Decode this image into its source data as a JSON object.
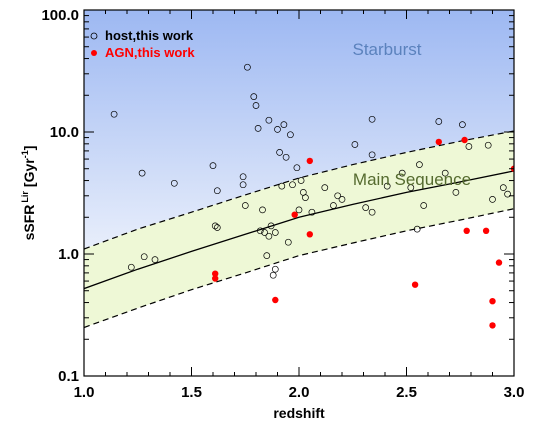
{
  "chart_data": {
    "type": "scatter",
    "xlabel": "redshift",
    "ylabel": "sSFR",
    "ylabel_superscript": "Lir",
    "ylabel_units": "[Gyr",
    "ylabel_units_exp": "-1",
    "ylabel_units_close": "]",
    "xlim": [
      1.0,
      3.0
    ],
    "ylim": [
      0.1,
      100.0
    ],
    "y_scale": "log",
    "grid": false,
    "legend_position": "top-left",
    "x_tick_labels": [
      "1.0",
      "1.5",
      "2.0",
      "2.5",
      "3.0"
    ],
    "x_ticks": [
      1.0,
      1.5,
      2.0,
      2.5,
      3.0
    ],
    "y_tick_labels": [
      "0.1",
      "1.0",
      "10.0",
      "100.0"
    ],
    "y_ticks": [
      0.1,
      1.0,
      10.0,
      100.0
    ],
    "annotations": {
      "starburst": "Starburst",
      "main_sequence": "Main Sequence"
    },
    "colors": {
      "starburst_top": "#9db8f2",
      "starburst_bottom": "#e8eefb",
      "main_sequence_fill": "#eef8d6",
      "starburst_text": "#5b82bd",
      "main_sequence_text": "#556b2f",
      "agn": "#ff0000",
      "legend_agn_text": "#ff0000",
      "host": "#000000"
    },
    "main_sequence": {
      "x": [
        1.0,
        1.25,
        1.5,
        1.75,
        2.0,
        2.25,
        2.5,
        2.75,
        3.0
      ],
      "center": [
        0.52,
        0.75,
        1.05,
        1.45,
        2.0,
        2.55,
        3.2,
        3.9,
        4.8
      ],
      "upper": [
        1.1,
        1.6,
        2.2,
        3.05,
        4.2,
        5.4,
        6.8,
        8.4,
        10.2
      ],
      "lower": [
        0.25,
        0.36,
        0.51,
        0.7,
        0.97,
        1.23,
        1.55,
        1.9,
        2.35
      ]
    },
    "series": [
      {
        "name": "host,this work",
        "marker": "open-circle",
        "points": [
          [
            1.14,
            14.0
          ],
          [
            1.22,
            0.78
          ],
          [
            1.27,
            4.6
          ],
          [
            1.28,
            0.95
          ],
          [
            1.33,
            0.9
          ],
          [
            1.42,
            3.8
          ],
          [
            1.6,
            5.3
          ],
          [
            1.61,
            1.7
          ],
          [
            1.62,
            1.65
          ],
          [
            1.62,
            3.3
          ],
          [
            1.74,
            4.3
          ],
          [
            1.74,
            3.7
          ],
          [
            1.75,
            2.5
          ],
          [
            1.76,
            34.0
          ],
          [
            1.79,
            19.5
          ],
          [
            1.8,
            16.5
          ],
          [
            1.81,
            10.7
          ],
          [
            1.82,
            1.55
          ],
          [
            1.83,
            2.3
          ],
          [
            1.84,
            1.5
          ],
          [
            1.85,
            0.97
          ],
          [
            1.86,
            12.5
          ],
          [
            1.86,
            1.4
          ],
          [
            1.87,
            1.7
          ],
          [
            1.88,
            0.67
          ],
          [
            1.89,
            0.75
          ],
          [
            1.89,
            1.5
          ],
          [
            1.9,
            10.5
          ],
          [
            1.91,
            6.8
          ],
          [
            1.92,
            3.6
          ],
          [
            1.93,
            11.5
          ],
          [
            1.94,
            6.2
          ],
          [
            1.95,
            1.25
          ],
          [
            1.96,
            9.5
          ],
          [
            1.97,
            3.7
          ],
          [
            1.99,
            5.1
          ],
          [
            2.0,
            2.3
          ],
          [
            2.01,
            4.0
          ],
          [
            2.02,
            3.2
          ],
          [
            2.03,
            2.9
          ],
          [
            2.06,
            2.2
          ],
          [
            2.12,
            3.5
          ],
          [
            2.16,
            2.5
          ],
          [
            2.18,
            3.0
          ],
          [
            2.2,
            2.8
          ],
          [
            2.26,
            7.9
          ],
          [
            2.31,
            2.4
          ],
          [
            2.34,
            2.2
          ],
          [
            2.34,
            6.5
          ],
          [
            2.34,
            12.7
          ],
          [
            2.41,
            3.6
          ],
          [
            2.48,
            4.6
          ],
          [
            2.52,
            3.5
          ],
          [
            2.55,
            1.6
          ],
          [
            2.56,
            5.4
          ],
          [
            2.58,
            2.5
          ],
          [
            2.65,
            12.2
          ],
          [
            2.68,
            4.6
          ],
          [
            2.73,
            3.2
          ],
          [
            2.76,
            11.5
          ],
          [
            2.79,
            7.6
          ],
          [
            2.88,
            7.8
          ],
          [
            2.9,
            2.8
          ],
          [
            2.95,
            3.5
          ],
          [
            2.97,
            3.1
          ]
        ]
      },
      {
        "name": "AGN,this work",
        "marker": "filled-circle",
        "points": [
          [
            1.61,
            0.69
          ],
          [
            1.61,
            0.63
          ],
          [
            1.89,
            0.42
          ],
          [
            1.98,
            2.1
          ],
          [
            2.05,
            5.8
          ],
          [
            2.05,
            1.45
          ],
          [
            2.54,
            0.56
          ],
          [
            2.65,
            8.3
          ],
          [
            2.77,
            8.6
          ],
          [
            2.78,
            1.55
          ],
          [
            2.87,
            1.55
          ],
          [
            2.9,
            0.41
          ],
          [
            2.9,
            0.26
          ],
          [
            2.93,
            0.85
          ],
          [
            3.0,
            5.0
          ]
        ]
      }
    ]
  }
}
